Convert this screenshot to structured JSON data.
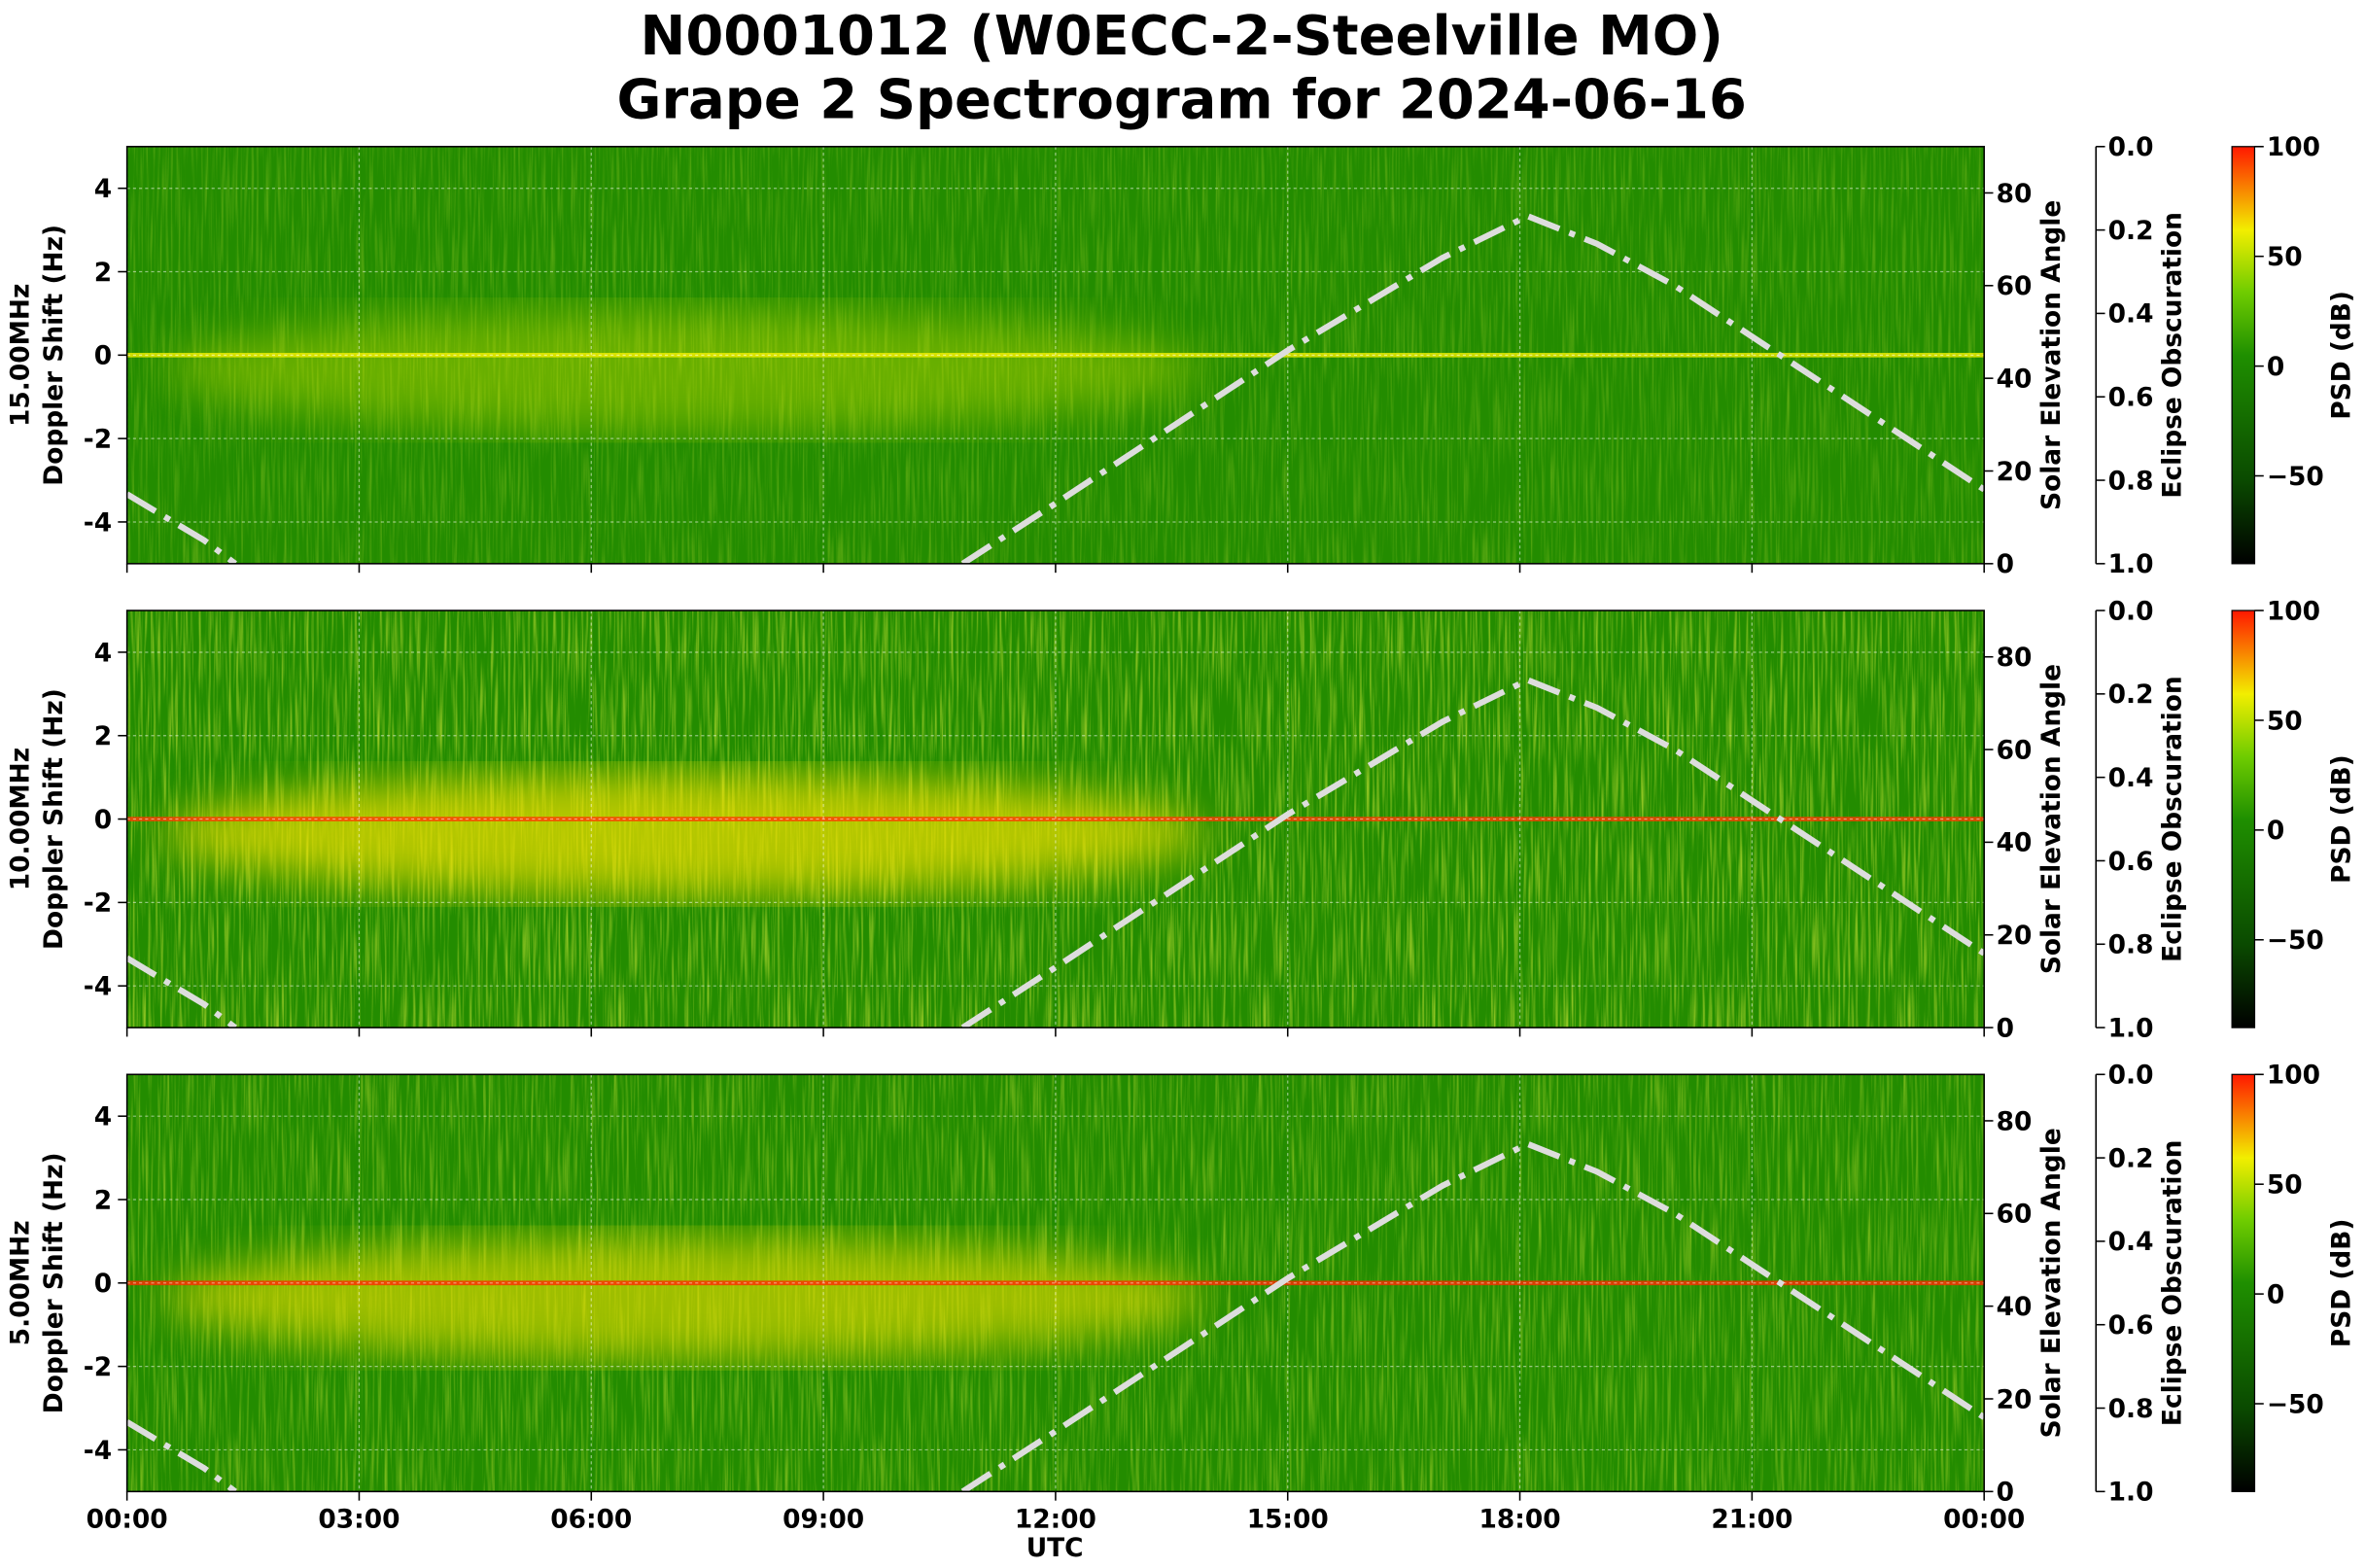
{
  "title": [
    "N0001012 (W0ECC-2-Steelville MO)",
    "Grape 2 Spectrogram for 2024-06-16"
  ],
  "x_label": "UTC",
  "chart_data": [
    {
      "type": "spectrogram",
      "ylabel": [
        "15.00MHz",
        "Doppler Shift (Hz)"
      ],
      "xlim": [
        0,
        24
      ],
      "xticks": [
        {
          "value": 0,
          "label": "00:00"
        },
        {
          "value": 3,
          "label": "03:00"
        },
        {
          "value": 6,
          "label": "06:00"
        },
        {
          "value": 9,
          "label": "09:00"
        },
        {
          "value": 12,
          "label": "12:00"
        },
        {
          "value": 15,
          "label": "15:00"
        },
        {
          "value": 18,
          "label": "18:00"
        },
        {
          "value": 21,
          "label": "21:00"
        },
        {
          "value": 24,
          "label": "00:00"
        }
      ],
      "ylim": [
        -5,
        5
      ],
      "yticks": [
        -4,
        -2,
        0,
        2,
        4
      ],
      "y2label": "Solar Elevation Angle",
      "y2lim": [
        0,
        90
      ],
      "y2ticks": [
        0,
        20,
        40,
        60,
        80
      ],
      "series": [
        {
          "name": "Solar Elevation Angle",
          "axis": "y2",
          "color": "#dddddd",
          "x": [
            0,
            0.5,
            1,
            1.4,
            6,
            10.8,
            12,
            13,
            14,
            15,
            16,
            17,
            18.1,
            19,
            20,
            21,
            22,
            23,
            24
          ],
          "values": [
            15,
            10,
            5,
            0,
            null,
            0,
            13,
            24,
            35,
            46,
            56,
            66,
            75,
            69,
            60,
            49,
            38,
            27,
            16
          ]
        }
      ],
      "eclipse_axis": {
        "label": "Eclipse Obscuration",
        "lim": [
          0,
          1
        ],
        "ticks": [
          {
            "value": 0,
            "label": "0.0"
          },
          0.2,
          0.4,
          0.6,
          0.8,
          {
            "value": 1,
            "label": "1.0"
          }
        ]
      },
      "colorbar": {
        "label": "PSD (dB)",
        "lim": [
          -90,
          100
        ],
        "ticks": [
          {
            "value": -50,
            "label": "−50"
          },
          0,
          50,
          100
        ]
      },
      "grid": true
    },
    {
      "type": "spectrogram",
      "ylabel": [
        "10.00MHz",
        "Doppler Shift (Hz)"
      ],
      "xlim": [
        0,
        24
      ],
      "xticks": [
        {
          "value": 0,
          "label": "00:00"
        },
        {
          "value": 3,
          "label": "03:00"
        },
        {
          "value": 6,
          "label": "06:00"
        },
        {
          "value": 9,
          "label": "09:00"
        },
        {
          "value": 12,
          "label": "12:00"
        },
        {
          "value": 15,
          "label": "15:00"
        },
        {
          "value": 18,
          "label": "18:00"
        },
        {
          "value": 21,
          "label": "21:00"
        },
        {
          "value": 24,
          "label": "00:00"
        }
      ],
      "ylim": [
        -5,
        5
      ],
      "yticks": [
        -4,
        -2,
        0,
        2,
        4
      ],
      "y2label": "Solar Elevation Angle",
      "y2lim": [
        0,
        90
      ],
      "y2ticks": [
        0,
        20,
        40,
        60,
        80
      ],
      "series": [
        {
          "name": "Solar Elevation Angle",
          "axis": "y2",
          "color": "#dddddd",
          "x": [
            0,
            0.5,
            1,
            1.4,
            6,
            10.8,
            12,
            13,
            14,
            15,
            16,
            17,
            18.1,
            19,
            20,
            21,
            22,
            23,
            24
          ],
          "values": [
            15,
            10,
            5,
            0,
            null,
            0,
            13,
            24,
            35,
            46,
            56,
            66,
            75,
            69,
            60,
            49,
            38,
            27,
            16
          ]
        }
      ],
      "eclipse_axis": {
        "label": "Eclipse Obscuration",
        "lim": [
          0,
          1
        ],
        "ticks": [
          {
            "value": 0,
            "label": "0.0"
          },
          0.2,
          0.4,
          0.6,
          0.8,
          {
            "value": 1,
            "label": "1.0"
          }
        ]
      },
      "colorbar": {
        "label": "PSD (dB)",
        "lim": [
          -90,
          100
        ],
        "ticks": [
          {
            "value": -50,
            "label": "−50"
          },
          0,
          50,
          100
        ]
      },
      "grid": true
    },
    {
      "type": "spectrogram",
      "ylabel": [
        "5.00MHz",
        "Doppler Shift (Hz)"
      ],
      "xlim": [
        0,
        24
      ],
      "xticks": [
        {
          "value": 0,
          "label": "00:00"
        },
        {
          "value": 3,
          "label": "03:00"
        },
        {
          "value": 6,
          "label": "06:00"
        },
        {
          "value": 9,
          "label": "09:00"
        },
        {
          "value": 12,
          "label": "12:00"
        },
        {
          "value": 15,
          "label": "15:00"
        },
        {
          "value": 18,
          "label": "18:00"
        },
        {
          "value": 21,
          "label": "21:00"
        },
        {
          "value": 24,
          "label": "00:00"
        }
      ],
      "ylim": [
        -5,
        5
      ],
      "yticks": [
        -4,
        -2,
        0,
        2,
        4
      ],
      "y2label": "Solar Elevation Angle",
      "y2lim": [
        0,
        90
      ],
      "y2ticks": [
        0,
        20,
        40,
        60,
        80
      ],
      "series": [
        {
          "name": "Solar Elevation Angle",
          "axis": "y2",
          "color": "#dddddd",
          "x": [
            0,
            0.5,
            1,
            1.4,
            6,
            10.8,
            12,
            13,
            14,
            15,
            16,
            17,
            18.1,
            19,
            20,
            21,
            22,
            23,
            24
          ],
          "values": [
            15,
            10,
            5,
            0,
            null,
            0,
            13,
            24,
            35,
            46,
            56,
            66,
            75,
            69,
            60,
            49,
            38,
            27,
            16
          ]
        }
      ],
      "eclipse_axis": {
        "label": "Eclipse Obscuration",
        "lim": [
          0,
          1
        ],
        "ticks": [
          {
            "value": 0,
            "label": "0.0"
          },
          0.2,
          0.4,
          0.6,
          0.8,
          {
            "value": 1,
            "label": "1.0"
          }
        ]
      },
      "colorbar": {
        "label": "PSD (dB)",
        "lim": [
          -90,
          100
        ],
        "ticks": [
          {
            "value": -50,
            "label": "−50"
          },
          0,
          50,
          100
        ]
      },
      "grid": true
    }
  ]
}
